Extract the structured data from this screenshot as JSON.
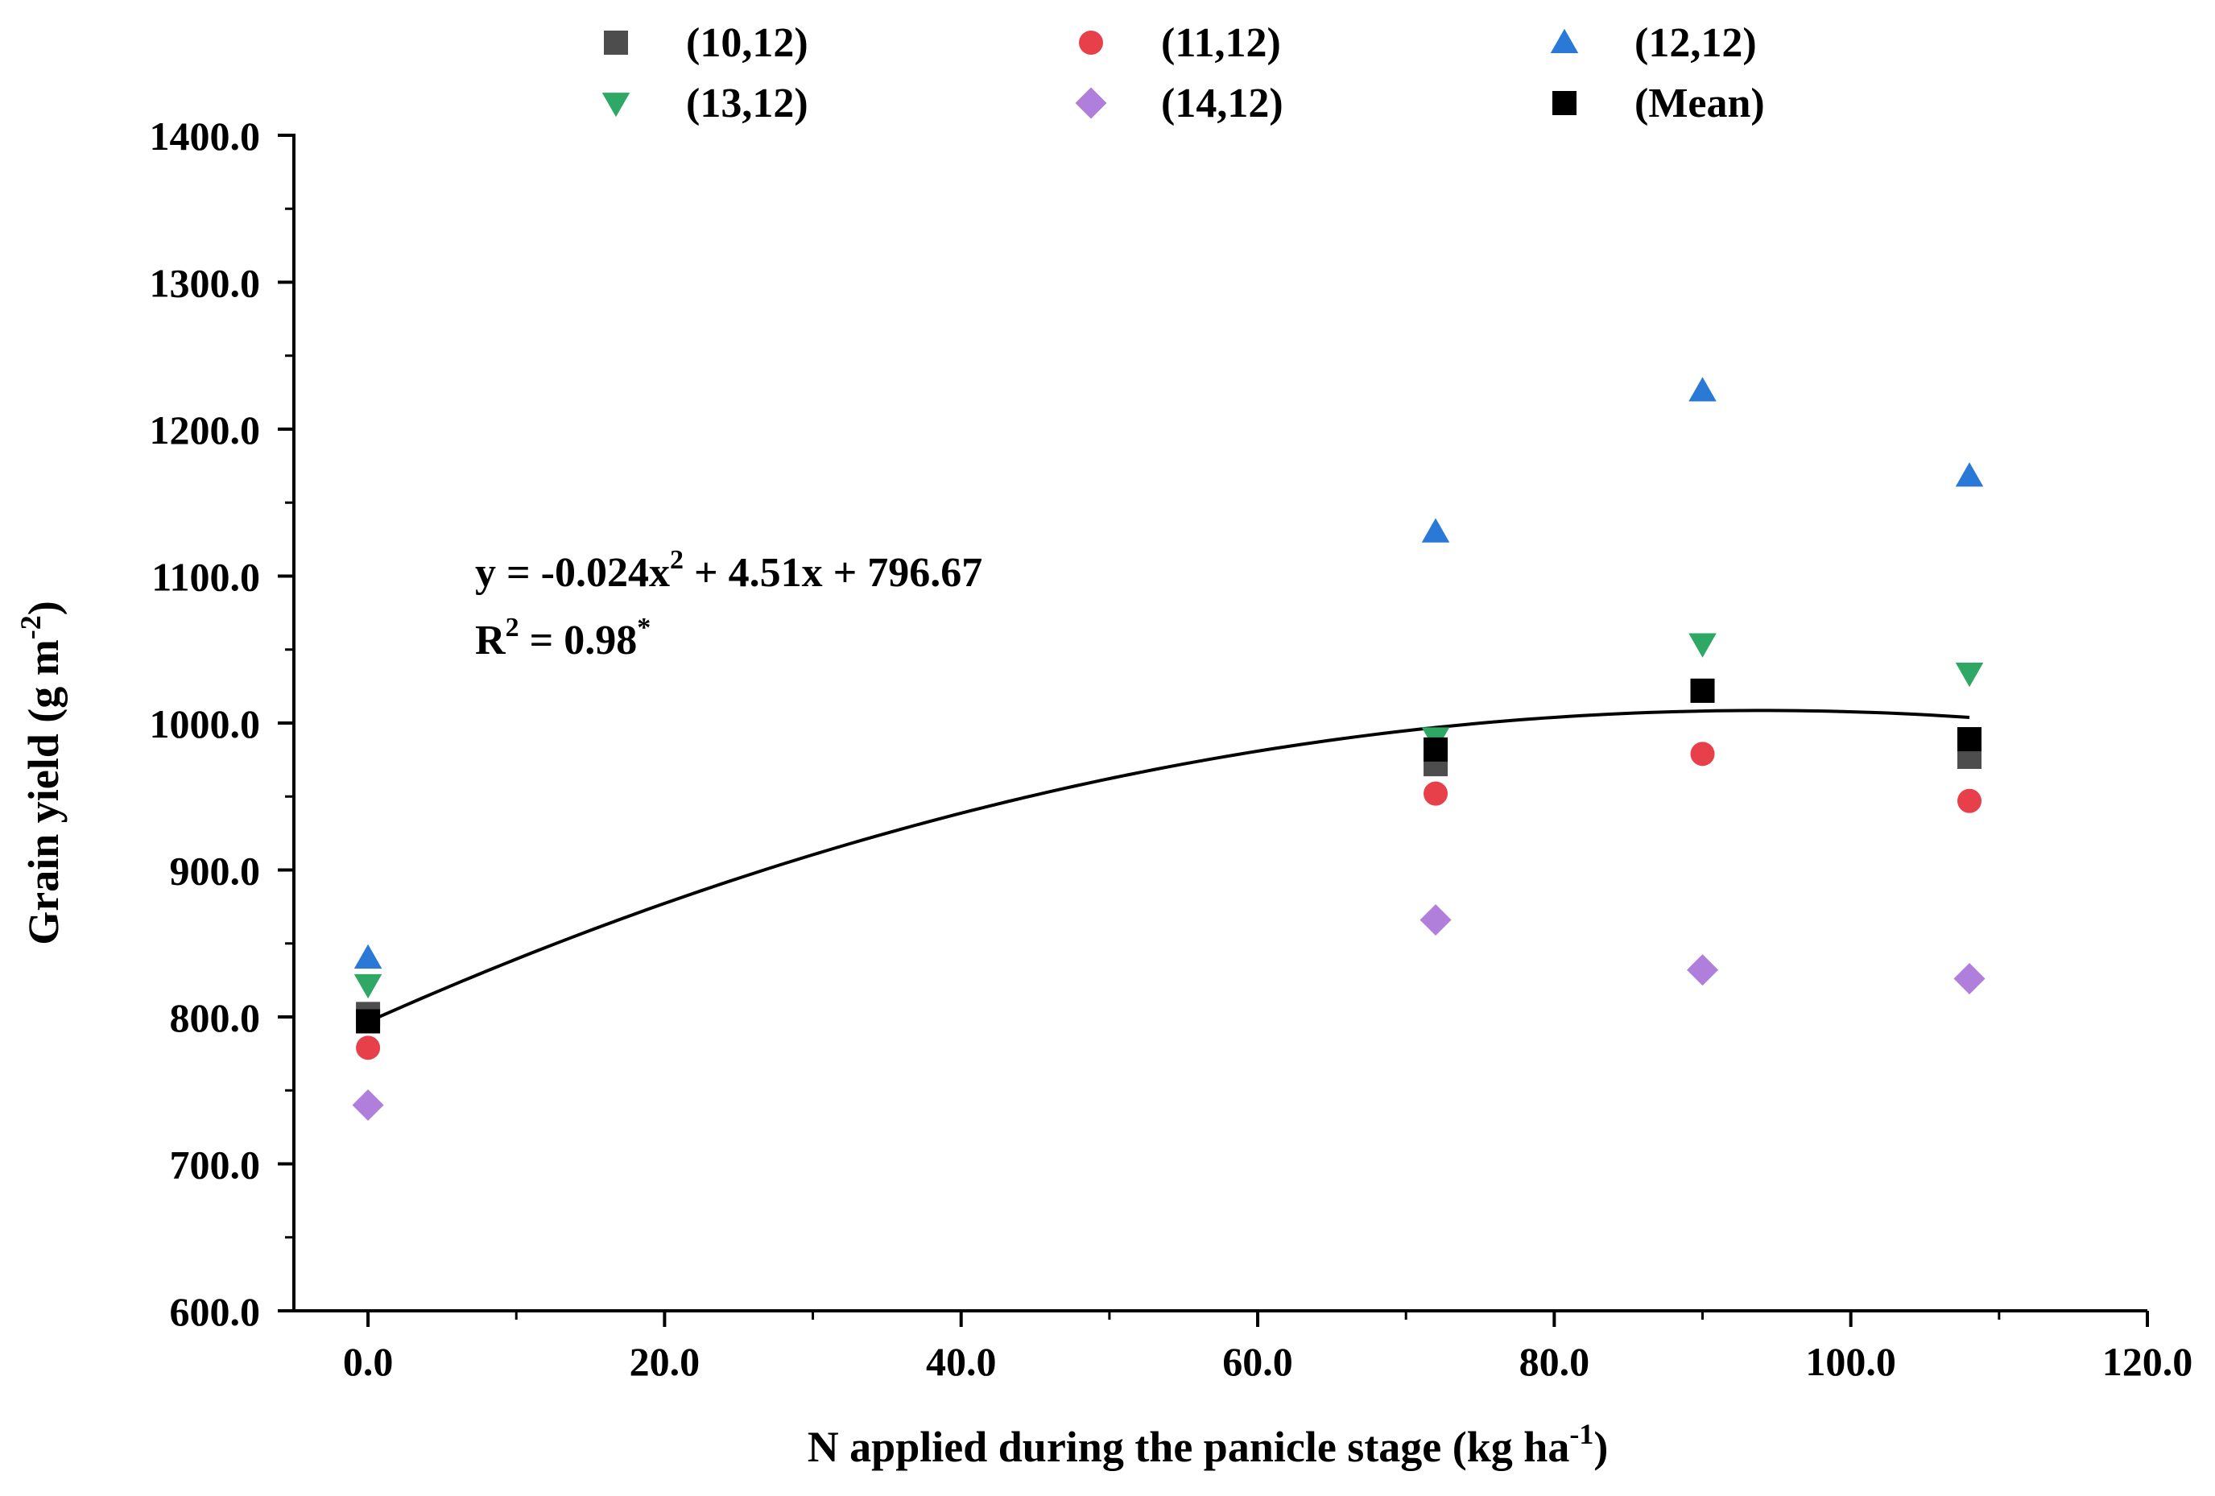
{
  "chart_data": {
    "type": "scatter",
    "title": "",
    "xlabel": {
      "main": "N applied during the panicle stage (kg ha",
      "sup": "-1",
      "tail": ")"
    },
    "ylabel": {
      "main": "Grain yield (g m",
      "sup": "-2",
      "tail": ")"
    },
    "xlim": [
      -5,
      120
    ],
    "ylim": [
      600,
      1400
    ],
    "x_ticks": [
      "0.0",
      "20.0",
      "40.0",
      "60.0",
      "80.0",
      "100.0",
      "120.0"
    ],
    "y_ticks": [
      "600.0",
      "700.0",
      "800.0",
      "900.0",
      "1000.0",
      "1100.0",
      "1200.0",
      "1300.0",
      "1400.0"
    ],
    "x_tick_values": [
      0,
      20,
      40,
      60,
      80,
      100,
      120
    ],
    "y_tick_values": [
      600,
      700,
      800,
      900,
      1000,
      1100,
      1200,
      1300,
      1400
    ],
    "grid": false,
    "legend_position": "top",
    "x": [
      0,
      72,
      90,
      108
    ],
    "series": [
      {
        "name": "(10,12)",
        "marker": "square",
        "color": "#4d4d4d",
        "values": [
          802,
          972,
          1022,
          977
        ]
      },
      {
        "name": "(11,12)",
        "marker": "circle",
        "color": "#e8404a",
        "values": [
          779,
          952,
          979,
          947
        ]
      },
      {
        "name": "(12,12)",
        "marker": "triangle-up",
        "color": "#2a79d6",
        "values": [
          840,
          1130,
          1226,
          1168
        ]
      },
      {
        "name": "(13,12)",
        "marker": "triangle-down",
        "color": "#2ea864",
        "values": [
          822,
          990,
          1054,
          1034
        ]
      },
      {
        "name": "(14,12)",
        "marker": "diamond",
        "color": "#b07fdb",
        "values": [
          740,
          866,
          832,
          826
        ]
      },
      {
        "name": "(Mean)",
        "marker": "square",
        "color": "#000000",
        "values": [
          797,
          982,
          1022,
          989
        ]
      }
    ],
    "fit": {
      "a": -0.024,
      "b": 4.51,
      "c": 796.67,
      "x_range": [
        0,
        108
      ],
      "equation": {
        "pre": "y = -0.024x",
        "sup": "2",
        "post": " + 4.51x + 796.67"
      },
      "r2": {
        "pre": "R",
        "sup": "2",
        "post": " = 0.98",
        "sig": "*"
      }
    }
  }
}
